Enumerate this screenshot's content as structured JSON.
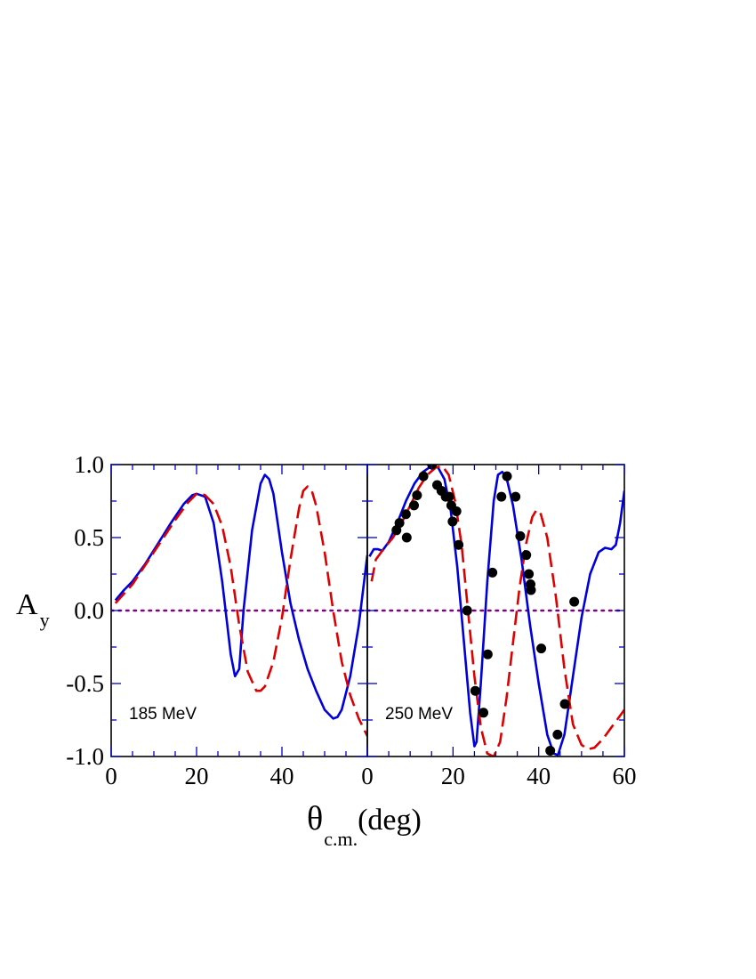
{
  "chart_data": [
    {
      "type": "line",
      "panel_label": "185 MeV",
      "xlim": [
        0,
        60
      ],
      "ylim": [
        -1.0,
        1.0
      ],
      "x_ticks": [
        "0",
        "20",
        "40"
      ],
      "y_ticks": [
        "1.0",
        "0.5",
        "0.0",
        "-0.5",
        "-1.0"
      ],
      "ylabel": "A",
      "ylabel_sub": "y",
      "reference_line": {
        "y": 0.0,
        "style": "dotted",
        "color": "#800080"
      },
      "series": [
        {
          "style": "solid",
          "color": "#0000dd",
          "x": [
            1,
            3,
            5,
            8,
            11,
            14,
            17,
            19,
            20,
            22,
            24,
            26,
            27,
            28,
            29,
            30,
            31,
            33,
            35,
            36,
            37,
            38,
            39,
            40,
            42,
            44,
            46,
            48,
            50,
            52,
            53,
            54,
            56,
            58,
            60
          ],
          "y": [
            0.07,
            0.14,
            0.2,
            0.32,
            0.46,
            0.6,
            0.73,
            0.79,
            0.8,
            0.78,
            0.6,
            0.2,
            -0.05,
            -0.3,
            -0.45,
            -0.4,
            0.0,
            0.55,
            0.87,
            0.93,
            0.9,
            0.8,
            0.6,
            0.4,
            0.05,
            -0.2,
            -0.4,
            -0.55,
            -0.68,
            -0.74,
            -0.73,
            -0.68,
            -0.45,
            -0.1,
            0.38
          ]
        },
        {
          "style": "dashed",
          "color": "#dd0000",
          "x": [
            1,
            5,
            10,
            15,
            18,
            20,
            21,
            22,
            24,
            26,
            28,
            30,
            32,
            34,
            35,
            36,
            38,
            40,
            42,
            44,
            45,
            46,
            47,
            48,
            50,
            52,
            54,
            56,
            58,
            60
          ],
          "y": [
            0.05,
            0.18,
            0.4,
            0.62,
            0.74,
            0.8,
            0.8,
            0.79,
            0.73,
            0.58,
            0.3,
            -0.1,
            -0.42,
            -0.55,
            -0.55,
            -0.52,
            -0.35,
            -0.05,
            0.35,
            0.7,
            0.82,
            0.85,
            0.82,
            0.72,
            0.4,
            0.0,
            -0.35,
            -0.58,
            -0.74,
            -0.86
          ]
        }
      ]
    },
    {
      "type": "line",
      "panel_label": "250 MeV",
      "xlim": [
        0,
        60
      ],
      "ylim": [
        -1.0,
        1.0
      ],
      "x_ticks": [
        "0",
        "20",
        "40",
        "60"
      ],
      "xlabel": "θ",
      "xlabel_sub": "c.m.",
      "xlabel_unit": "(deg)",
      "reference_line": {
        "y": 0.0,
        "style": "dotted",
        "color": "#800080"
      },
      "series": [
        {
          "style": "solid",
          "color": "#0000dd",
          "x": [
            0.5,
            1.5,
            2.5,
            3.5,
            5,
            7,
            9,
            11,
            13,
            15,
            16.5,
            18,
            19.5,
            21,
            22.5,
            24,
            25,
            25.5,
            26.5,
            28,
            29.5,
            30.5,
            31.5,
            32.5,
            34,
            36,
            38,
            40,
            42,
            43.5,
            44.5,
            46,
            48,
            50,
            52,
            54,
            55.5,
            57,
            58,
            59,
            60
          ],
          "y": [
            0.37,
            0.42,
            0.42,
            0.41,
            0.47,
            0.6,
            0.75,
            0.87,
            0.95,
            0.99,
            0.98,
            0.9,
            0.68,
            0.3,
            -0.2,
            -0.7,
            -0.93,
            -0.9,
            -0.5,
            0.2,
            0.75,
            0.93,
            0.95,
            0.91,
            0.72,
            0.35,
            -0.1,
            -0.5,
            -0.85,
            -0.98,
            -0.99,
            -0.85,
            -0.45,
            -0.05,
            0.25,
            0.4,
            0.43,
            0.42,
            0.45,
            0.6,
            0.82
          ]
        },
        {
          "style": "dashed",
          "color": "#dd0000",
          "x": [
            1,
            2,
            4,
            6,
            8,
            10,
            12,
            14,
            16,
            17.5,
            19,
            20.5,
            22,
            23.5,
            25,
            26.5,
            28,
            29.5,
            31,
            32.5,
            34,
            35.5,
            37,
            38.5,
            39.5,
            40.5,
            42,
            44,
            46,
            48,
            50,
            51.5,
            53,
            55,
            57,
            58.5,
            60
          ],
          "y": [
            0.2,
            0.35,
            0.43,
            0.5,
            0.6,
            0.72,
            0.84,
            0.93,
            0.98,
            0.99,
            0.93,
            0.75,
            0.45,
            0.0,
            -0.45,
            -0.8,
            -0.98,
            -1.0,
            -0.9,
            -0.6,
            -0.22,
            0.15,
            0.45,
            0.64,
            0.69,
            0.66,
            0.5,
            0.1,
            -0.4,
            -0.78,
            -0.92,
            -0.95,
            -0.94,
            -0.88,
            -0.8,
            -0.74,
            -0.68
          ]
        },
        {
          "style": "markers",
          "color": "#000000",
          "x": [
            6.8,
            7.5,
            9,
            9.2,
            10.9,
            11.6,
            13.1,
            15.1,
            16.3,
            17.3,
            18.3,
            19.1,
            19.6,
            19.9,
            20.8,
            21.3,
            23.3,
            25.2,
            27.1,
            28.1,
            29.2,
            31.3,
            32.6,
            34.6,
            35.7,
            37.1,
            37.7,
            38.1,
            38.2,
            40.6,
            42.7,
            44.4,
            46.1,
            48.3
          ],
          "y": [
            0.55,
            0.6,
            0.66,
            0.5,
            0.72,
            0.79,
            0.92,
            1.0,
            0.86,
            0.82,
            0.78,
            0.78,
            0.72,
            0.61,
            0.68,
            0.45,
            0.0,
            -0.55,
            -0.7,
            -0.3,
            0.26,
            0.78,
            0.92,
            0.78,
            0.51,
            0.38,
            0.25,
            0.18,
            0.14,
            -0.26,
            -0.96,
            -0.85,
            -0.64,
            0.06
          ]
        }
      ]
    }
  ]
}
